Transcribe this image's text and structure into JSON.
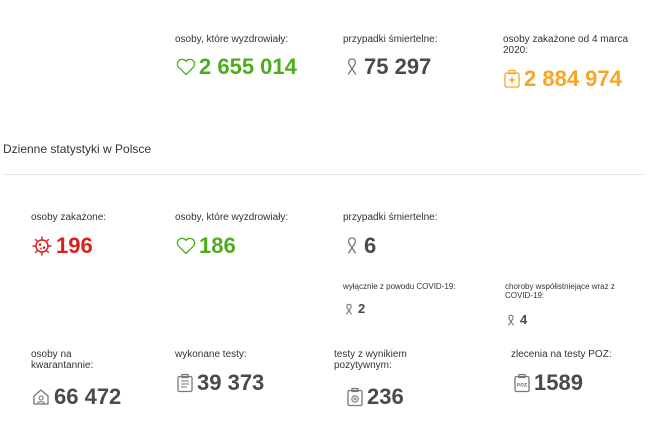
{
  "top": {
    "recovered": {
      "label": "osoby, które wyzdrowiały:",
      "value": "2 655 014",
      "icon": "heart-icon",
      "color": "#4caf1a"
    },
    "deaths": {
      "label": "przypadki śmiertelne:",
      "value": "75 297",
      "icon": "ribbon-icon",
      "color": "#4a4a4a"
    },
    "infected": {
      "label": "osoby zakażone od 4 marca 2020:",
      "value": "2 884 974",
      "icon": "medical-kit-icon",
      "color": "#f5a623"
    }
  },
  "daily": {
    "title": "Dzienne statystyki w Polsce",
    "infected": {
      "label": "osoby zakażone:",
      "value": "196",
      "icon": "virus-icon",
      "color": "#d9201a"
    },
    "recovered": {
      "label": "osoby, które wyzdrowiały:",
      "value": "186",
      "icon": "heart-icon",
      "color": "#4caf1a"
    },
    "deaths": {
      "label": "przypadki śmiertelne:",
      "value": "6",
      "icon": "ribbon-icon"
    },
    "deaths_covid_only": {
      "label": "wyłącznie z powodu COVID-19:",
      "value": "2",
      "icon": "ribbon-icon"
    },
    "deaths_comorbid": {
      "label": "choroby współistniejące wraz z COVID-19:",
      "value": "4",
      "icon": "ribbon-icon"
    },
    "quarantine": {
      "label": "osoby na kwarantannie:",
      "value": "66 472",
      "icon": "house-icon"
    },
    "tests": {
      "label": "wykonane testy:",
      "value": "39 373",
      "icon": "clipboard-icon"
    },
    "positive_tests": {
      "label": "testy z wynikiem pozytywnym:",
      "value": "236",
      "icon": "test-positive-icon"
    },
    "poz_orders": {
      "label": "zlecenia na testy POZ:",
      "value": "1589",
      "icon": "poz-clipboard-icon",
      "badge": "POZ"
    }
  }
}
